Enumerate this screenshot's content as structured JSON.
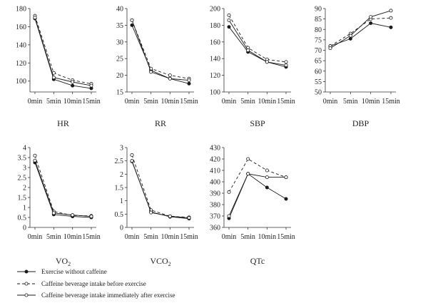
{
  "chart_data": [
    {
      "type": "line",
      "title": "HR",
      "categories": [
        "0min",
        "5min",
        "10min",
        "15min"
      ],
      "yticks": [
        "100",
        "120",
        "140",
        "160",
        "180"
      ],
      "ylim": [
        88,
        180
      ],
      "series": [
        {
          "name": "Exercise without caffeine",
          "values": [
            169,
            102,
            95,
            92
          ]
        },
        {
          "name": "Caffeine beverage intake before exercise",
          "values": [
            172,
            109,
            101,
            97
          ]
        },
        {
          "name": "Caffeine beverage intake immediately after exercise",
          "values": [
            170,
            104,
            99,
            95
          ]
        }
      ]
    },
    {
      "type": "line",
      "title": "RR",
      "categories": [
        "0min",
        "5min",
        "10min",
        "15min"
      ],
      "yticks": [
        "15",
        "20",
        "25",
        "30",
        "35",
        "40"
      ],
      "ylim": [
        15,
        40
      ],
      "series": [
        {
          "name": "Exercise without caffeine",
          "values": [
            35,
            21.5,
            19,
            17.5
          ]
        },
        {
          "name": "Caffeine beverage intake before exercise",
          "values": [
            36.5,
            22,
            20,
            19
          ]
        },
        {
          "name": "Caffeine beverage intake immediately after exercise",
          "values": [
            36.5,
            21,
            19,
            18.5
          ]
        }
      ]
    },
    {
      "type": "line",
      "title": "SBP",
      "categories": [
        "0min",
        "5min",
        "10min",
        "15min"
      ],
      "yticks": [
        "100",
        "120",
        "140",
        "160",
        "180",
        "200"
      ],
      "ylim": [
        100,
        200
      ],
      "series": [
        {
          "name": "Exercise without caffeine",
          "values": [
            178,
            148,
            136,
            130
          ]
        },
        {
          "name": "Caffeine beverage intake before exercise",
          "values": [
            192,
            153,
            139,
            136
          ]
        },
        {
          "name": "Caffeine beverage intake immediately after exercise",
          "values": [
            186,
            150,
            136,
            132
          ]
        }
      ]
    },
    {
      "type": "line",
      "title": "DBP",
      "categories": [
        "0min",
        "5min",
        "10min",
        "15min"
      ],
      "yticks": [
        "50",
        "55",
        "60",
        "65",
        "70",
        "75",
        "80",
        "85",
        "90"
      ],
      "ylim": [
        50,
        90
      ],
      "series": [
        {
          "name": "Exercise without caffeine",
          "values": [
            72,
            75.5,
            83,
            81
          ]
        },
        {
          "name": "Caffeine beverage intake before exercise",
          "values": [
            72,
            78,
            85,
            85.5
          ]
        },
        {
          "name": "Caffeine beverage intake immediately after exercise",
          "values": [
            71,
            77,
            86,
            89
          ]
        }
      ]
    },
    {
      "type": "line",
      "title": "VO2",
      "title_main": "VO",
      "title_sub": "2",
      "categories": [
        "0min",
        "5min",
        "10min",
        "15min"
      ],
      "yticks": [
        "0",
        "0.5",
        "1",
        "1.5",
        "2",
        "2.5",
        "3",
        "3.5",
        "4"
      ],
      "ylim": [
        0,
        4
      ],
      "series": [
        {
          "name": "Exercise without caffeine",
          "values": [
            3.25,
            0.65,
            0.55,
            0.5
          ]
        },
        {
          "name": "Caffeine beverage intake before exercise",
          "values": [
            3.6,
            0.8,
            0.6,
            0.58
          ]
        },
        {
          "name": "Caffeine beverage intake immediately after exercise",
          "values": [
            3.35,
            0.72,
            0.62,
            0.55
          ]
        }
      ]
    },
    {
      "type": "line",
      "title": "VCO2",
      "title_main": "VCO",
      "title_sub": "2",
      "categories": [
        "0min",
        "5min",
        "10min",
        "15min"
      ],
      "yticks": [
        "0",
        "0.5",
        "1",
        "1.5",
        "2",
        "2.5",
        "3"
      ],
      "ylim": [
        0,
        3
      ],
      "series": [
        {
          "name": "Exercise without caffeine",
          "values": [
            2.48,
            0.58,
            0.4,
            0.33
          ]
        },
        {
          "name": "Caffeine beverage intake before exercise",
          "values": [
            2.72,
            0.65,
            0.42,
            0.38
          ]
        },
        {
          "name": "Caffeine beverage intake immediately after exercise",
          "values": [
            2.5,
            0.56,
            0.42,
            0.36
          ]
        }
      ]
    },
    {
      "type": "line",
      "title": "QTc",
      "categories": [
        "0min",
        "5min",
        "10min",
        "15min"
      ],
      "yticks": [
        "360",
        "370",
        "380",
        "390",
        "400",
        "410",
        "420",
        "430"
      ],
      "ylim": [
        360,
        430
      ],
      "series": [
        {
          "name": "Exercise without caffeine",
          "values": [
            368,
            407,
            395,
            385
          ]
        },
        {
          "name": "Caffeine beverage intake before exercise",
          "values": [
            391,
            420,
            410,
            404
          ]
        },
        {
          "name": "Caffeine beverage intake immediately after exercise",
          "values": [
            370,
            407,
            404,
            404
          ]
        }
      ]
    }
  ],
  "legend": [
    {
      "label": "Exercise without caffeine",
      "style": "solid",
      "marker": "filled"
    },
    {
      "label": "Caffeine beverage intake before exercise",
      "style": "dashed",
      "marker": "open"
    },
    {
      "label": "Caffeine beverage intake immediately after exercise",
      "style": "solid",
      "marker": "open"
    }
  ],
  "colors": {
    "line": "#1a1a1a",
    "axis": "#333333"
  }
}
